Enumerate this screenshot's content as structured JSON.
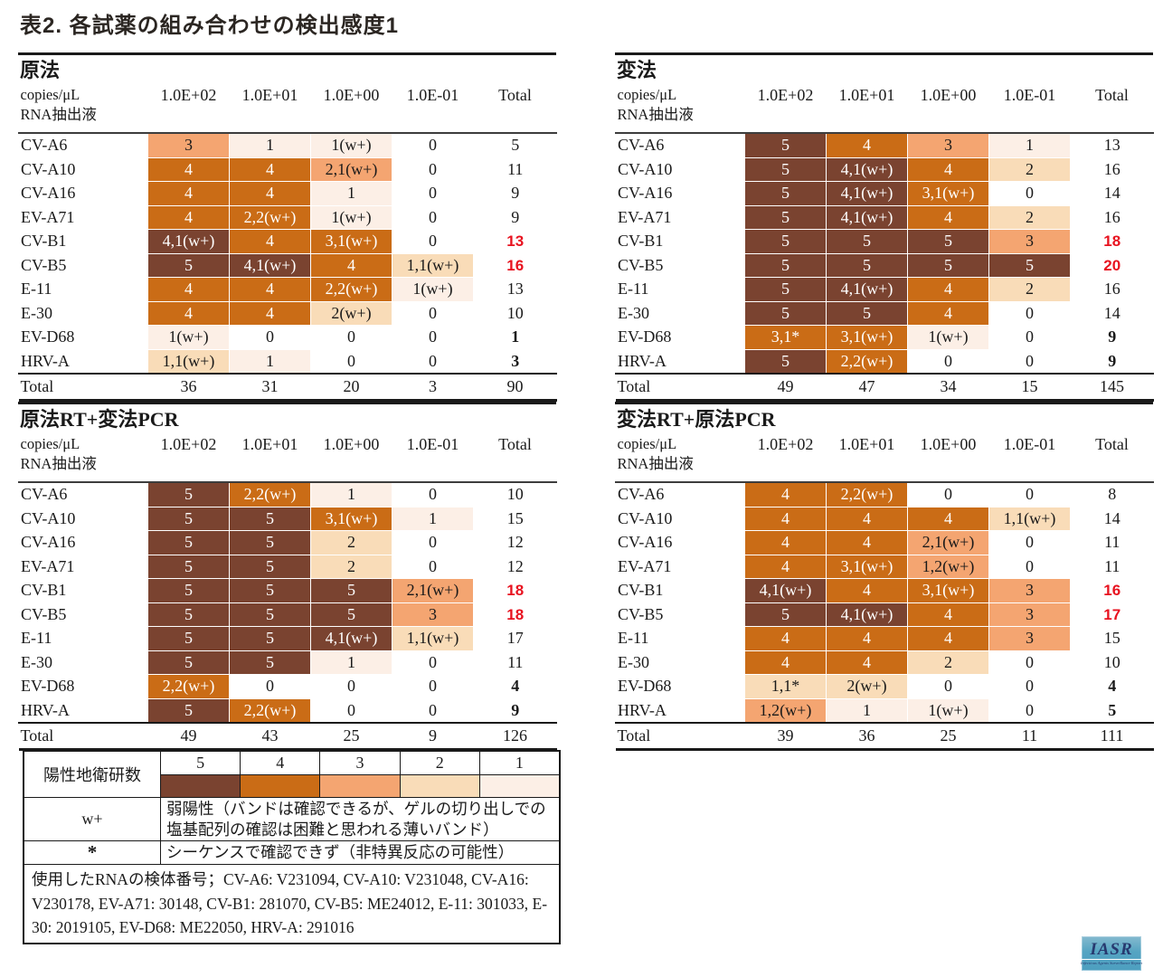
{
  "title": "表2. 各試薬の組み合わせの検出感度1",
  "table_columns": [
    "1.0E+02",
    "1.0E+01",
    "1.0E+00",
    "1.0E-01",
    "Total"
  ],
  "row_axis": {
    "line1": "copies/μL",
    "line2": "RNA抽出液"
  },
  "total_row_label": "Total",
  "level_colors": {
    "0": "#ffffff",
    "1": "#fcefe6",
    "2": "#f9dcb8",
    "3": "#f4a571",
    "4": "#ca6c16",
    "5": "#7a4330"
  },
  "red_color": "#e8121f",
  "panels": [
    {
      "title": "原法",
      "rows": [
        {
          "label": "CV-A6",
          "cells": [
            {
              "t": "3",
              "lv": 3
            },
            {
              "t": "1",
              "lv": 1
            },
            {
              "t": "1(w+)",
              "lv": 1
            },
            {
              "t": "0",
              "lv": 0
            }
          ],
          "total": "5",
          "total_style": "normal"
        },
        {
          "label": "CV-A10",
          "cells": [
            {
              "t": "4",
              "lv": 4
            },
            {
              "t": "4",
              "lv": 4
            },
            {
              "t": "2,1(w+)",
              "lv": 3
            },
            {
              "t": "0",
              "lv": 0
            }
          ],
          "total": "11",
          "total_style": "normal"
        },
        {
          "label": "CV-A16",
          "cells": [
            {
              "t": "4",
              "lv": 4
            },
            {
              "t": "4",
              "lv": 4
            },
            {
              "t": "1",
              "lv": 1
            },
            {
              "t": "0",
              "lv": 0
            }
          ],
          "total": "9",
          "total_style": "normal"
        },
        {
          "label": "EV-A71",
          "cells": [
            {
              "t": "4",
              "lv": 4
            },
            {
              "t": "2,2(w+)",
              "lv": 4
            },
            {
              "t": "1(w+)",
              "lv": 1
            },
            {
              "t": "0",
              "lv": 0
            }
          ],
          "total": "9",
          "total_style": "normal"
        },
        {
          "label": "CV-B1",
          "cells": [
            {
              "t": "4,1(w+)",
              "lv": 5
            },
            {
              "t": "4",
              "lv": 4
            },
            {
              "t": "3,1(w+)",
              "lv": 4
            },
            {
              "t": "0",
              "lv": 0
            }
          ],
          "total": "13",
          "total_style": "red"
        },
        {
          "label": "CV-B5",
          "cells": [
            {
              "t": "5",
              "lv": 5
            },
            {
              "t": "4,1(w+)",
              "lv": 5
            },
            {
              "t": "4",
              "lv": 4
            },
            {
              "t": "1,1(w+)",
              "lv": 2
            }
          ],
          "total": "16",
          "total_style": "red"
        },
        {
          "label": "E-11",
          "cells": [
            {
              "t": "4",
              "lv": 4
            },
            {
              "t": "4",
              "lv": 4
            },
            {
              "t": "2,2(w+)",
              "lv": 4
            },
            {
              "t": "1(w+)",
              "lv": 1
            }
          ],
          "total": "13",
          "total_style": "normal"
        },
        {
          "label": "E-30",
          "cells": [
            {
              "t": "4",
              "lv": 4
            },
            {
              "t": "4",
              "lv": 4
            },
            {
              "t": "2(w+)",
              "lv": 2
            },
            {
              "t": "0",
              "lv": 0
            }
          ],
          "total": "10",
          "total_style": "normal"
        },
        {
          "label": "EV-D68",
          "cells": [
            {
              "t": "1(w+)",
              "lv": 1
            },
            {
              "t": "0",
              "lv": 0
            },
            {
              "t": "0",
              "lv": 0
            },
            {
              "t": "0",
              "lv": 0
            }
          ],
          "total": "1",
          "total_style": "bold"
        },
        {
          "label": "HRV-A",
          "cells": [
            {
              "t": "1,1(w+)",
              "lv": 2
            },
            {
              "t": "1",
              "lv": 1
            },
            {
              "t": "0",
              "lv": 0
            },
            {
              "t": "0",
              "lv": 0
            }
          ],
          "total": "3",
          "total_style": "bold"
        }
      ],
      "col_totals": [
        "36",
        "31",
        "20",
        "3",
        "90"
      ]
    },
    {
      "title": "変法",
      "rows": [
        {
          "label": "CV-A6",
          "cells": [
            {
              "t": "5",
              "lv": 5
            },
            {
              "t": "4",
              "lv": 4
            },
            {
              "t": "3",
              "lv": 3
            },
            {
              "t": "1",
              "lv": 1
            }
          ],
          "total": "13",
          "total_style": "normal"
        },
        {
          "label": "CV-A10",
          "cells": [
            {
              "t": "5",
              "lv": 5
            },
            {
              "t": "4,1(w+)",
              "lv": 5
            },
            {
              "t": "4",
              "lv": 4
            },
            {
              "t": "2",
              "lv": 2
            }
          ],
          "total": "16",
          "total_style": "normal"
        },
        {
          "label": "CV-A16",
          "cells": [
            {
              "t": "5",
              "lv": 5
            },
            {
              "t": "4,1(w+)",
              "lv": 5
            },
            {
              "t": "3,1(w+)",
              "lv": 4
            },
            {
              "t": "0",
              "lv": 0
            }
          ],
          "total": "14",
          "total_style": "normal"
        },
        {
          "label": "EV-A71",
          "cells": [
            {
              "t": "5",
              "lv": 5
            },
            {
              "t": "4,1(w+)",
              "lv": 5
            },
            {
              "t": "4",
              "lv": 4
            },
            {
              "t": "2",
              "lv": 2
            }
          ],
          "total": "16",
          "total_style": "normal"
        },
        {
          "label": "CV-B1",
          "cells": [
            {
              "t": "5",
              "lv": 5
            },
            {
              "t": "5",
              "lv": 5
            },
            {
              "t": "5",
              "lv": 5
            },
            {
              "t": "3",
              "lv": 3
            }
          ],
          "total": "18",
          "total_style": "red"
        },
        {
          "label": "CV-B5",
          "cells": [
            {
              "t": "5",
              "lv": 5
            },
            {
              "t": "5",
              "lv": 5
            },
            {
              "t": "5",
              "lv": 5
            },
            {
              "t": "5",
              "lv": 5
            }
          ],
          "total": "20",
          "total_style": "red"
        },
        {
          "label": "E-11",
          "cells": [
            {
              "t": "5",
              "lv": 5
            },
            {
              "t": "4,1(w+)",
              "lv": 5
            },
            {
              "t": "4",
              "lv": 4
            },
            {
              "t": "2",
              "lv": 2
            }
          ],
          "total": "16",
          "total_style": "normal"
        },
        {
          "label": "E-30",
          "cells": [
            {
              "t": "5",
              "lv": 5
            },
            {
              "t": "5",
              "lv": 5
            },
            {
              "t": "4",
              "lv": 4
            },
            {
              "t": "0",
              "lv": 0
            }
          ],
          "total": "14",
          "total_style": "normal"
        },
        {
          "label": "EV-D68",
          "cells": [
            {
              "t": "3,1*",
              "lv": 4
            },
            {
              "t": "3,1(w+)",
              "lv": 4
            },
            {
              "t": "1(w+)",
              "lv": 1
            },
            {
              "t": "0",
              "lv": 0
            }
          ],
          "total": "9",
          "total_style": "bold"
        },
        {
          "label": "HRV-A",
          "cells": [
            {
              "t": "5",
              "lv": 5
            },
            {
              "t": "2,2(w+)",
              "lv": 4
            },
            {
              "t": "0",
              "lv": 0
            },
            {
              "t": "0",
              "lv": 0
            }
          ],
          "total": "9",
          "total_style": "bold"
        }
      ],
      "col_totals": [
        "49",
        "47",
        "34",
        "15",
        "145"
      ]
    },
    {
      "title": "原法RT+変法PCR",
      "rows": [
        {
          "label": "CV-A6",
          "cells": [
            {
              "t": "5",
              "lv": 5
            },
            {
              "t": "2,2(w+)",
              "lv": 4
            },
            {
              "t": "1",
              "lv": 1
            },
            {
              "t": "0",
              "lv": 0
            }
          ],
          "total": "10",
          "total_style": "normal"
        },
        {
          "label": "CV-A10",
          "cells": [
            {
              "t": "5",
              "lv": 5
            },
            {
              "t": "5",
              "lv": 5
            },
            {
              "t": "3,1(w+)",
              "lv": 4
            },
            {
              "t": "1",
              "lv": 1
            }
          ],
          "total": "15",
          "total_style": "normal"
        },
        {
          "label": "CV-A16",
          "cells": [
            {
              "t": "5",
              "lv": 5
            },
            {
              "t": "5",
              "lv": 5
            },
            {
              "t": "2",
              "lv": 2
            },
            {
              "t": "0",
              "lv": 0
            }
          ],
          "total": "12",
          "total_style": "normal"
        },
        {
          "label": "EV-A71",
          "cells": [
            {
              "t": "5",
              "lv": 5
            },
            {
              "t": "5",
              "lv": 5
            },
            {
              "t": "2",
              "lv": 2
            },
            {
              "t": "0",
              "lv": 0
            }
          ],
          "total": "12",
          "total_style": "normal"
        },
        {
          "label": "CV-B1",
          "cells": [
            {
              "t": "5",
              "lv": 5
            },
            {
              "t": "5",
              "lv": 5
            },
            {
              "t": "5",
              "lv": 5
            },
            {
              "t": "2,1(w+)",
              "lv": 3
            }
          ],
          "total": "18",
          "total_style": "red"
        },
        {
          "label": "CV-B5",
          "cells": [
            {
              "t": "5",
              "lv": 5
            },
            {
              "t": "5",
              "lv": 5
            },
            {
              "t": "5",
              "lv": 5
            },
            {
              "t": "3",
              "lv": 3
            }
          ],
          "total": "18",
          "total_style": "red"
        },
        {
          "label": "E-11",
          "cells": [
            {
              "t": "5",
              "lv": 5
            },
            {
              "t": "5",
              "lv": 5
            },
            {
              "t": "4,1(w+)",
              "lv": 5
            },
            {
              "t": "1,1(w+)",
              "lv": 2
            }
          ],
          "total": "17",
          "total_style": "normal"
        },
        {
          "label": "E-30",
          "cells": [
            {
              "t": "5",
              "lv": 5
            },
            {
              "t": "5",
              "lv": 5
            },
            {
              "t": "1",
              "lv": 1
            },
            {
              "t": "0",
              "lv": 0
            }
          ],
          "total": "11",
          "total_style": "normal"
        },
        {
          "label": "EV-D68",
          "cells": [
            {
              "t": "2,2(w+)",
              "lv": 4
            },
            {
              "t": "0",
              "lv": 0
            },
            {
              "t": "0",
              "lv": 0
            },
            {
              "t": "0",
              "lv": 0
            }
          ],
          "total": "4",
          "total_style": "bold"
        },
        {
          "label": "HRV-A",
          "cells": [
            {
              "t": "5",
              "lv": 5
            },
            {
              "t": "2,2(w+)",
              "lv": 4
            },
            {
              "t": "0",
              "lv": 0
            },
            {
              "t": "0",
              "lv": 0
            }
          ],
          "total": "9",
          "total_style": "bold"
        }
      ],
      "col_totals": [
        "49",
        "43",
        "25",
        "9",
        "126"
      ]
    },
    {
      "title": "変法RT+原法PCR",
      "rows": [
        {
          "label": "CV-A6",
          "cells": [
            {
              "t": "4",
              "lv": 4
            },
            {
              "t": "2,2(w+)",
              "lv": 4
            },
            {
              "t": "0",
              "lv": 0
            },
            {
              "t": "0",
              "lv": 0
            }
          ],
          "total": "8",
          "total_style": "normal"
        },
        {
          "label": "CV-A10",
          "cells": [
            {
              "t": "4",
              "lv": 4
            },
            {
              "t": "4",
              "lv": 4
            },
            {
              "t": "4",
              "lv": 4
            },
            {
              "t": "1,1(w+)",
              "lv": 2
            }
          ],
          "total": "14",
          "total_style": "normal"
        },
        {
          "label": "CV-A16",
          "cells": [
            {
              "t": "4",
              "lv": 4
            },
            {
              "t": "4",
              "lv": 4
            },
            {
              "t": "2,1(w+)",
              "lv": 3
            },
            {
              "t": "0",
              "lv": 0
            }
          ],
          "total": "11",
          "total_style": "normal"
        },
        {
          "label": "EV-A71",
          "cells": [
            {
              "t": "4",
              "lv": 4
            },
            {
              "t": "3,1(w+)",
              "lv": 4
            },
            {
              "t": "1,2(w+)",
              "lv": 3
            },
            {
              "t": "0",
              "lv": 0
            }
          ],
          "total": "11",
          "total_style": "normal"
        },
        {
          "label": "CV-B1",
          "cells": [
            {
              "t": "4,1(w+)",
              "lv": 5
            },
            {
              "t": "4",
              "lv": 4
            },
            {
              "t": "3,1(w+)",
              "lv": 4
            },
            {
              "t": "3",
              "lv": 3
            }
          ],
          "total": "16",
          "total_style": "red"
        },
        {
          "label": "CV-B5",
          "cells": [
            {
              "t": "5",
              "lv": 5
            },
            {
              "t": "4,1(w+)",
              "lv": 5
            },
            {
              "t": "4",
              "lv": 4
            },
            {
              "t": "3",
              "lv": 3
            }
          ],
          "total": "17",
          "total_style": "red"
        },
        {
          "label": "E-11",
          "cells": [
            {
              "t": "4",
              "lv": 4
            },
            {
              "t": "4",
              "lv": 4
            },
            {
              "t": "4",
              "lv": 4
            },
            {
              "t": "3",
              "lv": 3
            }
          ],
          "total": "15",
          "total_style": "normal"
        },
        {
          "label": "E-30",
          "cells": [
            {
              "t": "4",
              "lv": 4
            },
            {
              "t": "4",
              "lv": 4
            },
            {
              "t": "2",
              "lv": 2
            },
            {
              "t": "0",
              "lv": 0
            }
          ],
          "total": "10",
          "total_style": "normal"
        },
        {
          "label": "EV-D68",
          "cells": [
            {
              "t": "1,1*",
              "lv": 2
            },
            {
              "t": "2(w+)",
              "lv": 2
            },
            {
              "t": "0",
              "lv": 0
            },
            {
              "t": "0",
              "lv": 0
            }
          ],
          "total": "4",
          "total_style": "bold"
        },
        {
          "label": "HRV-A",
          "cells": [
            {
              "t": "1,2(w+)",
              "lv": 3
            },
            {
              "t": "1",
              "lv": 1
            },
            {
              "t": "1(w+)",
              "lv": 1
            },
            {
              "t": "0",
              "lv": 0
            }
          ],
          "total": "5",
          "total_style": "bold"
        }
      ],
      "col_totals": [
        "39",
        "36",
        "25",
        "11",
        "111"
      ]
    }
  ],
  "legend": {
    "scale_label": "陽性地衛研数",
    "scale_values": [
      "5",
      "4",
      "3",
      "2",
      "1"
    ],
    "wplus_symbol": "w+",
    "wplus_text": "弱陽性（バンドは確認できるが、ゲルの切り出しでの塩基配列の確認は困難と思われる薄いバンド）",
    "asterisk_symbol": "*",
    "asterisk_text": "シーケンスで確認できず（非特異反応の可能性）",
    "note": "使用したRNAの検体番号；CV-A6: V231094, CV-A10: V231048, CV-A16: V230178, EV-A71: 30148, CV-B1: 281070, CV-B5: ME24012, E-11: 301033, E-30: 2019105, EV-D68: ME22050, HRV-A: 291016"
  },
  "logo": {
    "text": "IASR",
    "subtext": "Infectious Agents Surveillance Report"
  }
}
